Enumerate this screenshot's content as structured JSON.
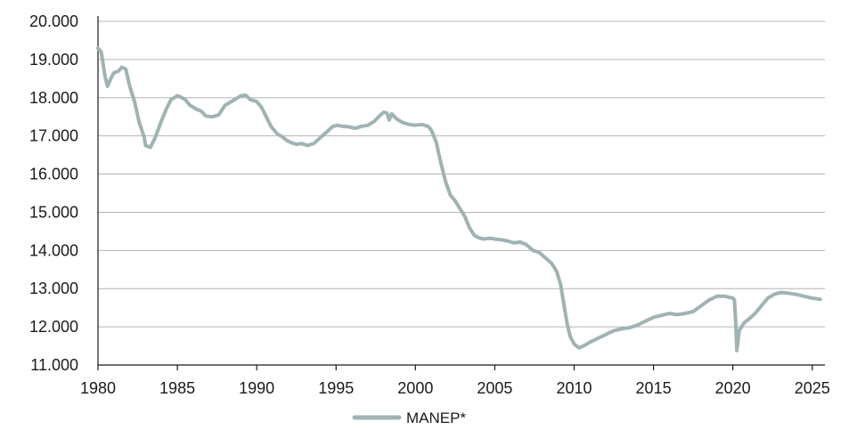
{
  "chart_data": {
    "type": "line",
    "title": "",
    "xlabel": "",
    "ylabel": "",
    "xlim": [
      1980,
      2025.8
    ],
    "ylim": [
      11000,
      20000
    ],
    "x_ticks": [
      1980,
      1985,
      1990,
      1995,
      2000,
      2005,
      2010,
      2015,
      2020,
      2025
    ],
    "x_tick_labels": [
      "1980",
      "1985",
      "1990",
      "1995",
      "2000",
      "2005",
      "2010",
      "2015",
      "2020",
      "2025"
    ],
    "y_ticks": [
      11000,
      12000,
      13000,
      14000,
      15000,
      16000,
      17000,
      18000,
      19000,
      20000
    ],
    "y_tick_labels": [
      "11.000",
      "12.000",
      "13.000",
      "14.000",
      "15.000",
      "16.000",
      "17.000",
      "18.000",
      "19.000",
      "20.000"
    ],
    "grid": "horizontal",
    "legend_position": "bottom-center",
    "series": [
      {
        "name": "MANEP*",
        "color": "#9fb3b3",
        "points": [
          [
            1980.0,
            19300
          ],
          [
            1980.2,
            19200
          ],
          [
            1980.45,
            18550
          ],
          [
            1980.6,
            18300
          ],
          [
            1980.8,
            18500
          ],
          [
            1981.0,
            18650
          ],
          [
            1981.3,
            18700
          ],
          [
            1981.5,
            18800
          ],
          [
            1981.75,
            18750
          ],
          [
            1982.0,
            18300
          ],
          [
            1982.3,
            17900
          ],
          [
            1982.6,
            17350
          ],
          [
            1982.9,
            16980
          ],
          [
            1983.0,
            16750
          ],
          [
            1983.3,
            16700
          ],
          [
            1983.6,
            16950
          ],
          [
            1984.0,
            17400
          ],
          [
            1984.3,
            17700
          ],
          [
            1984.6,
            17950
          ],
          [
            1985.0,
            18050
          ],
          [
            1985.2,
            18020
          ],
          [
            1985.5,
            17950
          ],
          [
            1985.8,
            17800
          ],
          [
            1986.2,
            17700
          ],
          [
            1986.5,
            17650
          ],
          [
            1986.8,
            17520
          ],
          [
            1987.2,
            17500
          ],
          [
            1987.6,
            17550
          ],
          [
            1988.0,
            17800
          ],
          [
            1988.4,
            17900
          ],
          [
            1988.8,
            18000
          ],
          [
            1989.0,
            18050
          ],
          [
            1989.3,
            18070
          ],
          [
            1989.6,
            17950
          ],
          [
            1990.0,
            17900
          ],
          [
            1990.3,
            17750
          ],
          [
            1990.6,
            17500
          ],
          [
            1990.9,
            17250
          ],
          [
            1991.3,
            17050
          ],
          [
            1991.6,
            16980
          ],
          [
            1991.9,
            16880
          ],
          [
            1992.2,
            16820
          ],
          [
            1992.5,
            16780
          ],
          [
            1992.8,
            16800
          ],
          [
            1993.2,
            16750
          ],
          [
            1993.6,
            16800
          ],
          [
            1994.0,
            16950
          ],
          [
            1994.4,
            17100
          ],
          [
            1994.8,
            17250
          ],
          [
            1995.1,
            17280
          ],
          [
            1995.4,
            17250
          ],
          [
            1995.8,
            17240
          ],
          [
            1996.2,
            17200
          ],
          [
            1996.6,
            17250
          ],
          [
            1997.0,
            17280
          ],
          [
            1997.4,
            17380
          ],
          [
            1997.8,
            17550
          ],
          [
            1998.0,
            17620
          ],
          [
            1998.2,
            17600
          ],
          [
            1998.35,
            17420
          ],
          [
            1998.5,
            17580
          ],
          [
            1998.8,
            17450
          ],
          [
            1999.2,
            17350
          ],
          [
            1999.6,
            17300
          ],
          [
            2000.0,
            17280
          ],
          [
            2000.4,
            17300
          ],
          [
            2000.8,
            17250
          ],
          [
            2001.0,
            17150
          ],
          [
            2001.3,
            16850
          ],
          [
            2001.6,
            16300
          ],
          [
            2001.9,
            15800
          ],
          [
            2002.2,
            15450
          ],
          [
            2002.5,
            15300
          ],
          [
            2002.8,
            15100
          ],
          [
            2003.1,
            14900
          ],
          [
            2003.4,
            14600
          ],
          [
            2003.7,
            14400
          ],
          [
            2004.0,
            14330
          ],
          [
            2004.3,
            14300
          ],
          [
            2004.7,
            14320
          ],
          [
            2005.0,
            14300
          ],
          [
            2005.4,
            14280
          ],
          [
            2005.8,
            14250
          ],
          [
            2006.2,
            14200
          ],
          [
            2006.6,
            14220
          ],
          [
            2007.0,
            14150
          ],
          [
            2007.4,
            14000
          ],
          [
            2007.8,
            13950
          ],
          [
            2008.2,
            13800
          ],
          [
            2008.6,
            13650
          ],
          [
            2008.9,
            13450
          ],
          [
            2009.15,
            13100
          ],
          [
            2009.35,
            12600
          ],
          [
            2009.55,
            12100
          ],
          [
            2009.75,
            11750
          ],
          [
            2010.0,
            11550
          ],
          [
            2010.3,
            11450
          ],
          [
            2010.6,
            11500
          ],
          [
            2011.0,
            11600
          ],
          [
            2011.5,
            11700
          ],
          [
            2012.0,
            11800
          ],
          [
            2012.5,
            11900
          ],
          [
            2013.0,
            11950
          ],
          [
            2013.5,
            11980
          ],
          [
            2014.0,
            12050
          ],
          [
            2014.5,
            12150
          ],
          [
            2015.0,
            12250
          ],
          [
            2015.5,
            12300
          ],
          [
            2016.0,
            12350
          ],
          [
            2016.5,
            12320
          ],
          [
            2017.0,
            12350
          ],
          [
            2017.5,
            12400
          ],
          [
            2018.0,
            12550
          ],
          [
            2018.5,
            12700
          ],
          [
            2019.0,
            12800
          ],
          [
            2019.5,
            12800
          ],
          [
            2020.0,
            12750
          ],
          [
            2020.1,
            12700
          ],
          [
            2020.18,
            12100
          ],
          [
            2020.25,
            11380
          ],
          [
            2020.4,
            11900
          ],
          [
            2020.7,
            12100
          ],
          [
            2021.0,
            12200
          ],
          [
            2021.4,
            12350
          ],
          [
            2021.8,
            12550
          ],
          [
            2022.2,
            12750
          ],
          [
            2022.6,
            12850
          ],
          [
            2023.0,
            12900
          ],
          [
            2023.5,
            12880
          ],
          [
            2024.0,
            12850
          ],
          [
            2024.5,
            12800
          ],
          [
            2025.0,
            12750
          ],
          [
            2025.5,
            12720
          ]
        ]
      }
    ]
  }
}
